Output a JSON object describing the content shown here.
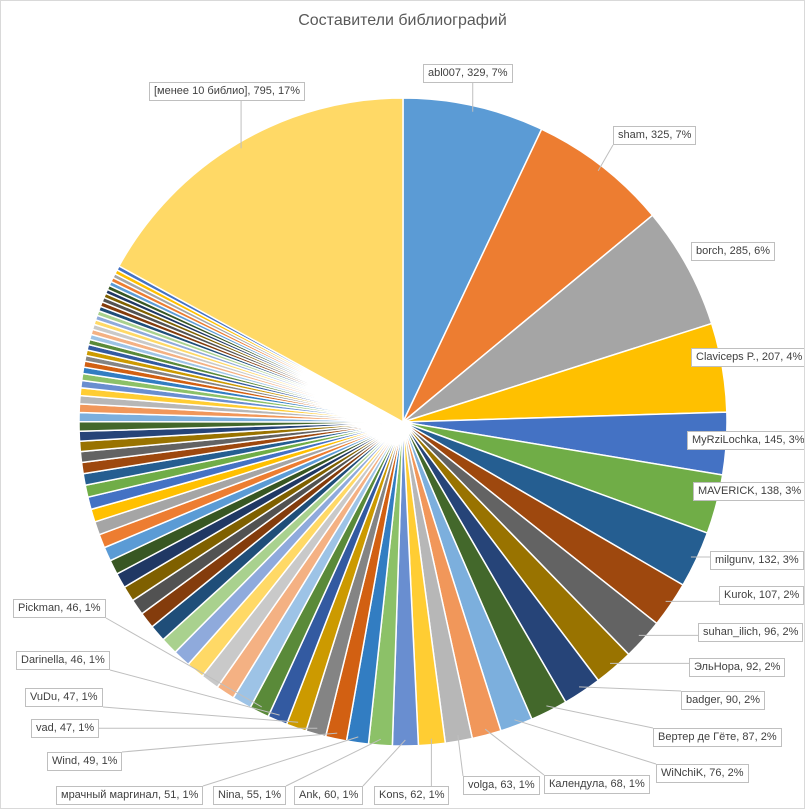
{
  "chart_data": {
    "type": "pie",
    "title": "Составители библиографий",
    "total_approx": 4676,
    "labeled_slices": [
      {
        "label": "abl007",
        "value": 329,
        "percent": "7%",
        "color": "#5B9BD5"
      },
      {
        "label": "sham",
        "value": 325,
        "percent": "7%",
        "color": "#ED7D31"
      },
      {
        "label": "borch",
        "value": 285,
        "percent": "6%",
        "color": "#A5A5A5"
      },
      {
        "label": "Claviceps P.",
        "value": 207,
        "percent": "4%",
        "color": "#FFC000"
      },
      {
        "label": "MyRziLochka",
        "value": 145,
        "percent": "3%",
        "color": "#4472C4"
      },
      {
        "label": "MAVERICK",
        "value": 138,
        "percent": "3%",
        "color": "#70AD47"
      },
      {
        "label": "milgunv",
        "value": 132,
        "percent": "3%",
        "color": "#255E91"
      },
      {
        "label": "Kurok",
        "value": 107,
        "percent": "2%",
        "color": "#9E480E"
      },
      {
        "label": "suhan_ilich",
        "value": 96,
        "percent": "2%",
        "color": "#636363"
      },
      {
        "label": "ЭльНора",
        "value": 92,
        "percent": "2%",
        "color": "#997300"
      },
      {
        "label": "badger",
        "value": 90,
        "percent": "2%",
        "color": "#264478"
      },
      {
        "label": "Вертер де Гёте",
        "value": 87,
        "percent": "2%",
        "color": "#43682B"
      },
      {
        "label": "WiNchiK",
        "value": 76,
        "percent": "2%",
        "color": "#7CAFDD"
      },
      {
        "label": "Календула",
        "value": 68,
        "percent": "1%",
        "color": "#F1975A"
      },
      {
        "label": "volga",
        "value": 63,
        "percent": "1%",
        "color": "#B7B7B7"
      },
      {
        "label": "Kons",
        "value": 62,
        "percent": "1%",
        "color": "#FFCD33"
      },
      {
        "label": "Ank",
        "value": 60,
        "percent": "1%",
        "color": "#698ED0"
      },
      {
        "label": "Nina",
        "value": 55,
        "percent": "1%",
        "color": "#8CC168"
      },
      {
        "label": "мрачный маргинал",
        "value": 51,
        "percent": "1%",
        "color": "#327DC2"
      },
      {
        "label": "Wind",
        "value": 49,
        "percent": "1%",
        "color": "#D26012"
      },
      {
        "label": "vad",
        "value": 47,
        "percent": "1%",
        "color": "#848484"
      },
      {
        "label": "VuDu",
        "value": 47,
        "percent": "1%",
        "color": "#CC9A00"
      },
      {
        "label": "Darinella",
        "value": 46,
        "percent": "1%",
        "color": "#335AA1"
      },
      {
        "label": "Pickman",
        "value": 46,
        "percent": "1%",
        "color": "#5A8A39"
      }
    ],
    "unlabeled_values": [
      45,
      44,
      43,
      42,
      41,
      40,
      39,
      38,
      37,
      36,
      35,
      34,
      33,
      32,
      31,
      30,
      29,
      28,
      27,
      26,
      25,
      24,
      23,
      22,
      21,
      20,
      19,
      18,
      17,
      16,
      15,
      14,
      13,
      13,
      13,
      12,
      12,
      12,
      12,
      11,
      11,
      11,
      11,
      11,
      11,
      10,
      10,
      10,
      10,
      10,
      10,
      10,
      10
    ],
    "other_slice": {
      "label": "[менее 10 библио]",
      "value": 795,
      "percent": "17%",
      "color": "#FFD966"
    },
    "palette": [
      "#5B9BD5",
      "#ED7D31",
      "#A5A5A5",
      "#FFC000",
      "#4472C4",
      "#70AD47",
      "#255E91",
      "#9E480E",
      "#636363",
      "#997300",
      "#264478",
      "#43682B",
      "#7CAFDD",
      "#F1975A",
      "#B7B7B7",
      "#FFCD33",
      "#698ED0",
      "#8CC168",
      "#327DC2",
      "#D26012",
      "#848484",
      "#CC9A00",
      "#335AA1",
      "#5A8A39",
      "#9DC3E6",
      "#F4B183",
      "#C9C9C9",
      "#FFD966",
      "#8FAADC",
      "#A9D18E",
      "#1F4E79",
      "#843C0C",
      "#525252",
      "#7F6000",
      "#203864",
      "#385723"
    ]
  }
}
